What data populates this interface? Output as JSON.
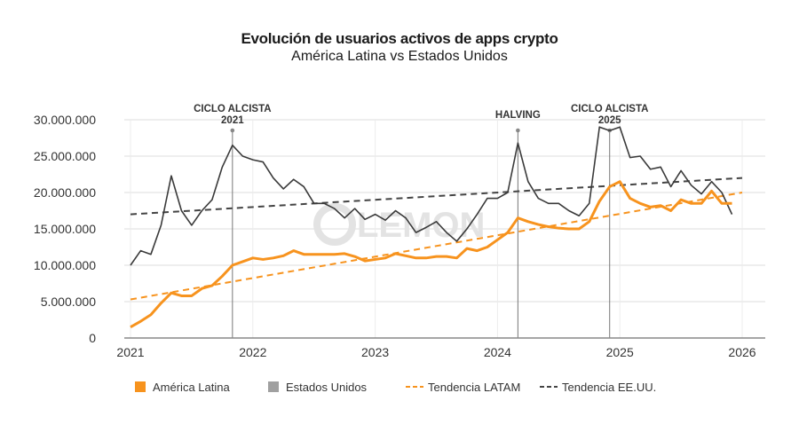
{
  "title": "Evolución de usuarios activos de apps crypto",
  "subtitle": "América Latina vs Estados Unidos",
  "watermark": "LEMON",
  "chart_data": {
    "type": "line",
    "title": "Evolución de usuarios activos de apps crypto",
    "subtitle": "América Latina vs Estados Unidos",
    "x_start": "2021-01",
    "x_frequency": "monthly",
    "xlim": [
      2021,
      2026
    ],
    "ylim": [
      0,
      30000000
    ],
    "x_ticks": [
      "2021",
      "2022",
      "2023",
      "2024",
      "2025",
      "2026"
    ],
    "y_ticks": [
      "0",
      "5.000.000",
      "10.000.000",
      "15.000.000",
      "20.000.000",
      "25.000.000",
      "30.000.000"
    ],
    "y_tick_values": [
      0,
      5000000,
      10000000,
      15000000,
      20000000,
      25000000,
      30000000
    ],
    "grid": true,
    "legend_position": "bottom",
    "series": [
      {
        "name": "América Latina",
        "color": "#f7931e",
        "style": "solid",
        "values": [
          1.5,
          2.3,
          3.2,
          4.8,
          6.2,
          5.8,
          5.8,
          6.8,
          7.2,
          8.5,
          10,
          10.5,
          11,
          10.8,
          11,
          11.3,
          12,
          11.5,
          11.5,
          11.5,
          11.5,
          11.6,
          11.2,
          10.6,
          10.8,
          11,
          11.6,
          11.3,
          11,
          11,
          11.2,
          11.2,
          11,
          12.3,
          12,
          12.5,
          13.5,
          14.5,
          16.5,
          16,
          15.6,
          15.3,
          15.1,
          15,
          15,
          16,
          18.8,
          20.8,
          21.5,
          19.2,
          18.5,
          18,
          18.2,
          17.5,
          19,
          18.5,
          18.5,
          20.2,
          18.5,
          18.5
        ]
      },
      {
        "name": "Estados Unidos",
        "color": "#3a3a3a",
        "legend_color": "#a0a0a0",
        "style": "solid",
        "values": [
          10,
          12,
          11.5,
          15.5,
          22.3,
          17.5,
          15.5,
          17.5,
          19,
          23.5,
          26.5,
          25,
          24.5,
          24.2,
          22,
          20.5,
          21.8,
          20.8,
          18.5,
          18.5,
          17.8,
          16.5,
          17.8,
          16.3,
          17,
          16.2,
          17.5,
          16.5,
          14.5,
          15.2,
          16,
          14.5,
          13.3,
          15,
          17,
          19.2,
          19.2,
          20,
          26.8,
          21.5,
          19.2,
          18.5,
          18.5,
          17.5,
          16.8,
          18.5,
          29,
          28.5,
          29,
          24.8,
          25,
          23.2,
          23.5,
          20.8,
          23,
          21,
          19.8,
          21.5,
          20,
          17
        ]
      },
      {
        "name": "Tendencia LATAM",
        "color": "#f7931e",
        "style": "dashed",
        "values": [
          5.3,
          20
        ]
      },
      {
        "name": "Tendencia EE.UU.",
        "color": "#444444",
        "style": "dashed",
        "values": [
          17,
          22
        ]
      }
    ],
    "value_unit_multiplier": 1000000,
    "annotations": [
      {
        "label": "CICLO ALCISTA",
        "label2": "2021",
        "x": "2021-11"
      },
      {
        "label": "HALVING",
        "label2": "",
        "x": "2024-03"
      },
      {
        "label": "CICLO ALCISTA",
        "label2": "2025",
        "x": "2024-12"
      }
    ]
  }
}
